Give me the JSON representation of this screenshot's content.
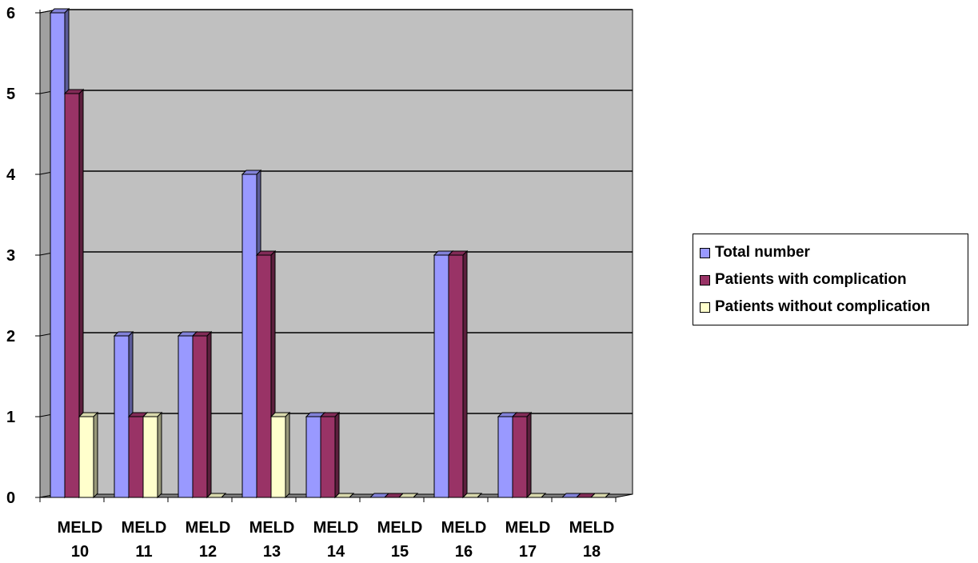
{
  "chart_data": {
    "type": "bar",
    "categories": [
      [
        "MELD",
        "10"
      ],
      [
        "MELD",
        "11"
      ],
      [
        "MELD",
        "12"
      ],
      [
        "MELD",
        "13"
      ],
      [
        "MELD",
        "14"
      ],
      [
        "MELD",
        "15"
      ],
      [
        "MELD",
        "16"
      ],
      [
        "MELD",
        "17"
      ],
      [
        "MELD",
        "18"
      ]
    ],
    "series": [
      {
        "name": "Total number",
        "values": [
          6,
          2,
          2,
          4,
          1,
          0,
          3,
          1,
          0
        ],
        "color": "#9999ff"
      },
      {
        "name": "Patients with complication",
        "values": [
          5,
          1,
          2,
          3,
          1,
          0,
          3,
          1,
          0
        ],
        "color": "#993366"
      },
      {
        "name": "Patients without complication",
        "values": [
          1,
          1,
          0,
          1,
          0,
          0,
          0,
          0,
          0
        ],
        "color": "#ffffcc"
      }
    ],
    "ylim": [
      0,
      6
    ],
    "yticks": [
      "0",
      "1",
      "2",
      "3",
      "4",
      "5",
      "6"
    ],
    "grid": true,
    "legend_position": "right",
    "plot_background": "#c0c0c0",
    "style": "3d-clustered-column"
  }
}
